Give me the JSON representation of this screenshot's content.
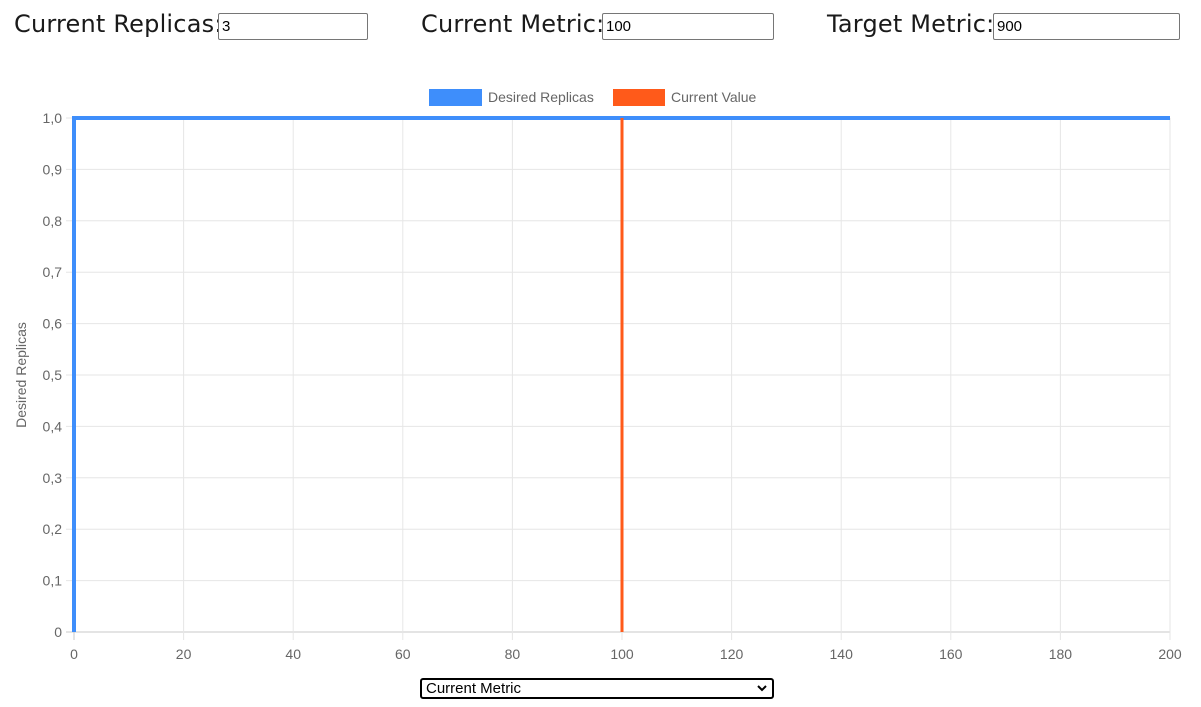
{
  "controls": {
    "current_replicas": {
      "label": "Current Replicas:",
      "value": "3"
    },
    "current_metric": {
      "label": "Current Metric:",
      "value": "100"
    },
    "target_metric": {
      "label": "Target Metric:",
      "value": "900"
    }
  },
  "axis_select": {
    "selected": "Current Metric",
    "options": [
      "Current Metric"
    ],
    "icon": "chevron-down-icon"
  },
  "colors": {
    "desired_replicas": "#3e8efb",
    "current_value": "#ff5a1a",
    "grid": "#e6e6e6"
  },
  "chart_data": {
    "type": "line",
    "title": "",
    "xlabel": "",
    "ylabel": "Desired Replicas",
    "xlim": [
      0,
      200
    ],
    "ylim": [
      0,
      1.0
    ],
    "x_ticks": [
      "0",
      "20",
      "40",
      "60",
      "80",
      "100",
      "120",
      "140",
      "160",
      "180",
      "200"
    ],
    "y_ticks": [
      "0",
      "0,1",
      "0,2",
      "0,3",
      "0,4",
      "0,5",
      "0,6",
      "0,7",
      "0,8",
      "0,9",
      "1,0"
    ],
    "grid": true,
    "legend_position": "top-center",
    "series": [
      {
        "name": "Desired Replicas",
        "points": [
          [
            0,
            0
          ],
          [
            0,
            1.0
          ],
          [
            200,
            1.0
          ]
        ]
      },
      {
        "name": "Current Value",
        "points": [
          [
            100,
            0
          ],
          [
            100,
            1.0
          ]
        ]
      }
    ]
  }
}
